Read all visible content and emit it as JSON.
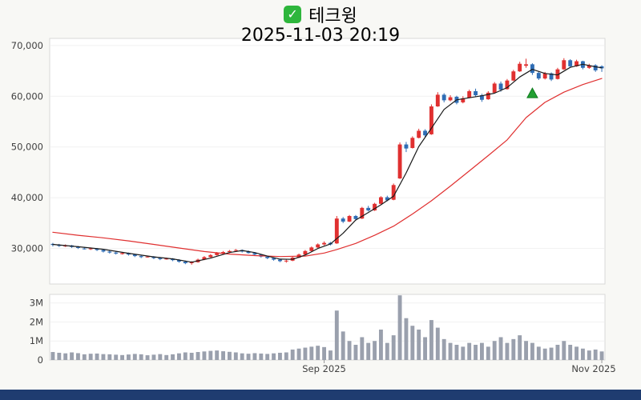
{
  "header": {
    "check_glyph": "✓",
    "check_color": "#2eb63c",
    "title": "테크윙",
    "datetime": "2025-11-03 20:19"
  },
  "footer": {
    "bar_color": "#1f3c70"
  },
  "chart_data": {
    "type": "candlestick",
    "title": "테크윙",
    "subtitle": "2025-11-03 20:19",
    "legend_position": "none",
    "grid": "faint-horizontal",
    "colors": {
      "up": "#e03030",
      "down": "#2f6db5",
      "volume": "#9aa0ad",
      "ma_short": "#1a1a1a",
      "ma_long": "#e03030"
    },
    "price_axis": {
      "min": 23000,
      "max": 71400,
      "ticks": [
        {
          "value": 70000,
          "label": "70,000"
        },
        {
          "value": 60000,
          "label": "60,000"
        },
        {
          "value": 50000,
          "label": "50,000"
        },
        {
          "value": 40000,
          "label": "40,000"
        },
        {
          "value": 30000,
          "label": "30,000"
        }
      ]
    },
    "volume_axis": {
      "max": 3450000,
      "ticks": [
        {
          "value": 3000000,
          "label": "3M"
        },
        {
          "value": 2000000,
          "label": "2M"
        },
        {
          "value": 1000000,
          "label": "1M"
        },
        {
          "value": 0,
          "label": "0"
        }
      ]
    },
    "x_axis": {
      "ticks": [
        {
          "index": 43,
          "label": "Sep 2025"
        },
        {
          "index": 87,
          "label": "Nov 2025"
        }
      ]
    },
    "candles": [
      [
        30900,
        31100,
        30400,
        30700,
        420000
      ],
      [
        30700,
        30900,
        30300,
        30500,
        380000
      ],
      [
        30400,
        30800,
        30300,
        30600,
        350000
      ],
      [
        30600,
        30700,
        30100,
        30300,
        400000
      ],
      [
        30300,
        30500,
        29900,
        30100,
        360000
      ],
      [
        30000,
        30300,
        29800,
        29900,
        300000
      ],
      [
        29900,
        30200,
        29700,
        30000,
        330000
      ],
      [
        30000,
        30100,
        29500,
        29700,
        340000
      ],
      [
        29700,
        29900,
        29200,
        29400,
        310000
      ],
      [
        29400,
        29600,
        29000,
        29200,
        300000
      ],
      [
        29200,
        29400,
        28800,
        29000,
        280000
      ],
      [
        28900,
        29300,
        28800,
        29100,
        260000
      ],
      [
        29100,
        29200,
        28600,
        28800,
        290000
      ],
      [
        28800,
        28900,
        28300,
        28500,
        320000
      ],
      [
        28500,
        28700,
        28100,
        28300,
        300000
      ],
      [
        28300,
        28600,
        28200,
        28400,
        250000
      ],
      [
        28400,
        28500,
        27900,
        28100,
        280000
      ],
      [
        28100,
        28300,
        27700,
        27900,
        310000
      ],
      [
        27900,
        28200,
        27800,
        28000,
        260000
      ],
      [
        28000,
        28100,
        27500,
        27700,
        300000
      ],
      [
        27700,
        27900,
        27200,
        27400,
        350000
      ],
      [
        27400,
        27600,
        26900,
        27100,
        400000
      ],
      [
        27100,
        27500,
        26800,
        27300,
        380000
      ],
      [
        27300,
        28000,
        27200,
        27800,
        420000
      ],
      [
        27800,
        28500,
        27700,
        28300,
        450000
      ],
      [
        28300,
        28900,
        28200,
        28700,
        480000
      ],
      [
        28700,
        29300,
        28600,
        29100,
        500000
      ],
      [
        29100,
        29500,
        28900,
        29300,
        460000
      ],
      [
        29300,
        29700,
        29100,
        29500,
        430000
      ],
      [
        29600,
        29900,
        29400,
        29700,
        400000
      ],
      [
        29700,
        29800,
        29200,
        29400,
        350000
      ],
      [
        29400,
        29600,
        29000,
        29100,
        330000
      ],
      [
        29100,
        29300,
        28600,
        28800,
        360000
      ],
      [
        28800,
        28900,
        28200,
        28400,
        340000
      ],
      [
        28400,
        28500,
        27900,
        28100,
        320000
      ],
      [
        28100,
        28200,
        27600,
        27800,
        350000
      ],
      [
        27800,
        27900,
        27300,
        27500,
        380000
      ],
      [
        27500,
        27800,
        27200,
        27600,
        400000
      ],
      [
        27600,
        28400,
        27500,
        28200,
        550000
      ],
      [
        28200,
        29000,
        28100,
        28800,
        600000
      ],
      [
        28800,
        29700,
        28700,
        29500,
        650000
      ],
      [
        29500,
        30400,
        29400,
        30200,
        700000
      ],
      [
        30200,
        31000,
        30100,
        30800,
        750000
      ],
      [
        30800,
        31400,
        30600,
        31100,
        680000
      ],
      [
        31100,
        31300,
        30600,
        30800,
        500000
      ],
      [
        31000,
        36400,
        30900,
        35900,
        2600000
      ],
      [
        35900,
        36200,
        35000,
        35300,
        1500000
      ],
      [
        35300,
        36600,
        35200,
        36400,
        1000000
      ],
      [
        36400,
        36600,
        35500,
        35800,
        800000
      ],
      [
        35900,
        38200,
        35800,
        38000,
        1200000
      ],
      [
        38000,
        38400,
        37300,
        37500,
        900000
      ],
      [
        37500,
        39000,
        37400,
        38800,
        1000000
      ],
      [
        38800,
        40300,
        38700,
        40100,
        1600000
      ],
      [
        40100,
        40400,
        39300,
        39500,
        900000
      ],
      [
        39600,
        42800,
        39500,
        42500,
        1300000
      ],
      [
        43800,
        50900,
        43700,
        50500,
        3400000
      ],
      [
        50500,
        51000,
        49000,
        49700,
        2200000
      ],
      [
        49800,
        52100,
        49700,
        51800,
        1800000
      ],
      [
        51800,
        53600,
        51700,
        53200,
        1600000
      ],
      [
        53200,
        53500,
        51900,
        52300,
        1200000
      ],
      [
        52500,
        58400,
        52400,
        58000,
        2100000
      ],
      [
        58000,
        60800,
        57900,
        60300,
        1700000
      ],
      [
        60300,
        60600,
        58800,
        59200,
        1100000
      ],
      [
        59200,
        60200,
        59000,
        59800,
        900000
      ],
      [
        59900,
        60100,
        58400,
        58700,
        800000
      ],
      [
        58800,
        60000,
        58600,
        59600,
        700000
      ],
      [
        59700,
        61300,
        59600,
        61000,
        900000
      ],
      [
        61000,
        61500,
        59900,
        60200,
        800000
      ],
      [
        60200,
        60500,
        58900,
        59300,
        900000
      ],
      [
        59400,
        61000,
        59300,
        60700,
        700000
      ],
      [
        60700,
        62800,
        60600,
        62500,
        1000000
      ],
      [
        62500,
        62900,
        60900,
        61300,
        1200000
      ],
      [
        61400,
        63400,
        61300,
        63100,
        900000
      ],
      [
        63100,
        65200,
        63000,
        64900,
        1100000
      ],
      [
        64900,
        66800,
        64800,
        66400,
        1300000
      ],
      [
        66000,
        67400,
        65600,
        66300,
        1000000
      ],
      [
        66300,
        66500,
        64200,
        64600,
        900000
      ],
      [
        64600,
        64900,
        63200,
        63500,
        700000
      ],
      [
        63500,
        64800,
        63300,
        64500,
        600000
      ],
      [
        64500,
        64700,
        63000,
        63300,
        650000
      ],
      [
        63400,
        65600,
        63300,
        65300,
        800000
      ],
      [
        65300,
        67500,
        65200,
        67100,
        1000000
      ],
      [
        67100,
        67300,
        65600,
        65900,
        800000
      ],
      [
        65900,
        67200,
        65800,
        66900,
        700000
      ],
      [
        66900,
        67000,
        65300,
        65600,
        600000
      ],
      [
        65600,
        66400,
        65400,
        66100,
        500000
      ],
      [
        66100,
        66300,
        64800,
        65100,
        550000
      ],
      [
        65900,
        66100,
        64800,
        65500,
        450000
      ]
    ],
    "ma_short": {
      "name": "short-moving-average",
      "color": "#1a1a1a",
      "width": 1.2,
      "anchors": [
        [
          0,
          30800
        ],
        [
          4,
          30350
        ],
        [
          8,
          29850
        ],
        [
          12,
          29050
        ],
        [
          16,
          28350
        ],
        [
          19,
          27950
        ],
        [
          22,
          27300
        ],
        [
          25,
          28100
        ],
        [
          28,
          29200
        ],
        [
          30,
          29600
        ],
        [
          32,
          29200
        ],
        [
          34,
          28500
        ],
        [
          36,
          27900
        ],
        [
          38,
          27850
        ],
        [
          40,
          28700
        ],
        [
          42,
          30000
        ],
        [
          44,
          30900
        ],
        [
          46,
          33000
        ],
        [
          48,
          35600
        ],
        [
          50,
          37100
        ],
        [
          52,
          38600
        ],
        [
          54,
          40300
        ],
        [
          56,
          44900
        ],
        [
          58,
          50100
        ],
        [
          60,
          53700
        ],
        [
          62,
          57400
        ],
        [
          64,
          59300
        ],
        [
          66,
          59700
        ],
        [
          68,
          60100
        ],
        [
          70,
          60600
        ],
        [
          72,
          61700
        ],
        [
          74,
          63800
        ],
        [
          76,
          65300
        ],
        [
          78,
          64500
        ],
        [
          80,
          64200
        ],
        [
          82,
          65700
        ],
        [
          84,
          66300
        ],
        [
          86,
          65800
        ],
        [
          87,
          65600
        ]
      ]
    },
    "ma_long": {
      "name": "long-moving-average",
      "color": "#e03030",
      "width": 1.2,
      "anchors": [
        [
          0,
          33200
        ],
        [
          4,
          32600
        ],
        [
          8,
          32100
        ],
        [
          12,
          31500
        ],
        [
          16,
          30800
        ],
        [
          20,
          30100
        ],
        [
          24,
          29400
        ],
        [
          28,
          28900
        ],
        [
          32,
          28600
        ],
        [
          36,
          28400
        ],
        [
          40,
          28500
        ],
        [
          43,
          29100
        ],
        [
          45,
          29800
        ],
        [
          48,
          31000
        ],
        [
          51,
          32600
        ],
        [
          54,
          34400
        ],
        [
          57,
          36800
        ],
        [
          60,
          39400
        ],
        [
          63,
          42300
        ],
        [
          66,
          45300
        ],
        [
          69,
          48300
        ],
        [
          72,
          51400
        ],
        [
          75,
          55800
        ],
        [
          78,
          58800
        ],
        [
          81,
          60800
        ],
        [
          84,
          62300
        ],
        [
          87,
          63500
        ]
      ]
    },
    "marker": {
      "shape": "triangle-up",
      "index": 76,
      "price": 60500,
      "color": "#22a032",
      "edge": "#0f7a1e"
    }
  }
}
